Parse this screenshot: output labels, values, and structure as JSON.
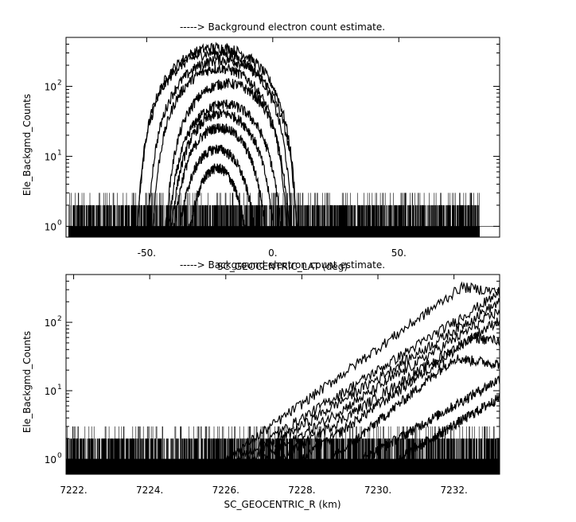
{
  "chart_data": [
    {
      "type": "line",
      "title": "-----> Background electron count estimate.",
      "xlabel": "SC_GEOCENTRIC_LAT (deg)",
      "ylabel": "Ele_Backgmd_Counts",
      "xlim": [
        -82,
        90
      ],
      "ylim": [
        0.7,
        500
      ],
      "yscale": "log",
      "grid": false,
      "x_ticks": [
        {
          "value": -50,
          "label": "-50."
        },
        {
          "value": 0,
          "label": "0."
        },
        {
          "value": 50,
          "label": "50."
        }
      ],
      "y_ticks": [
        {
          "value": 1,
          "base": "10",
          "exp": "0"
        },
        {
          "value": 10,
          "base": "10",
          "exp": "1"
        },
        {
          "value": 100,
          "base": "10",
          "exp": "2"
        }
      ],
      "noise": {
        "x_range": [
          -81,
          82
        ],
        "levels": [
          1,
          2,
          3
        ]
      },
      "series": [
        {
          "center": -22,
          "half_width": 32,
          "peak": 360
        },
        {
          "center": -23,
          "half_width": 31,
          "peak": 300
        },
        {
          "center": -20,
          "half_width": 30,
          "peak": 240
        },
        {
          "center": -21,
          "half_width": 27,
          "peak": 180
        },
        {
          "center": -18,
          "half_width": 25,
          "peak": 110
        },
        {
          "center": -19,
          "half_width": 23,
          "peak": 55
        },
        {
          "center": -20,
          "half_width": 21,
          "peak": 40
        },
        {
          "center": -21,
          "half_width": 19,
          "peak": 25
        },
        {
          "center": -22,
          "half_width": 16,
          "peak": 12
        },
        {
          "center": -22,
          "half_width": 12,
          "peak": 6
        }
      ]
    },
    {
      "type": "line",
      "title": "-----> Background electron count estimate.",
      "xlabel": "SC_GEOCENTRIC_R (km)",
      "ylabel": "Ele_Backgmd_Counts",
      "xlim": [
        7221.8,
        7233.2
      ],
      "ylim": [
        0.6,
        500
      ],
      "yscale": "log",
      "grid": false,
      "x_ticks": [
        {
          "value": 7222,
          "label": "7222."
        },
        {
          "value": 7224,
          "label": "7224."
        },
        {
          "value": 7226,
          "label": "7226."
        },
        {
          "value": 7228,
          "label": "7228."
        },
        {
          "value": 7230,
          "label": "7230."
        },
        {
          "value": 7232,
          "label": "7232."
        }
      ],
      "y_ticks": [
        {
          "value": 1,
          "base": "10",
          "exp": "0"
        },
        {
          "value": 10,
          "base": "10",
          "exp": "1"
        },
        {
          "value": 100,
          "base": "10",
          "exp": "2"
        }
      ],
      "noise": {
        "x_range": [
          7221.8,
          7233.2
        ],
        "levels": [
          1,
          2,
          3
        ]
      },
      "series": [
        {
          "x_start": 7226.0,
          "x_peak": 7232.2,
          "peak": 330
        },
        {
          "x_start": 7226.3,
          "x_peak": 7233.2,
          "peak": 270
        },
        {
          "x_start": 7226.6,
          "x_peak": 7233.2,
          "peak": 200
        },
        {
          "x_start": 7227.0,
          "x_peak": 7233.2,
          "peak": 150
        },
        {
          "x_start": 7227.4,
          "x_peak": 7233.2,
          "peak": 110
        },
        {
          "x_start": 7228.0,
          "x_peak": 7232.5,
          "peak": 60
        },
        {
          "x_start": 7228.8,
          "x_peak": 7232.0,
          "peak": 30
        },
        {
          "x_start": 7229.6,
          "x_peak": 7233.2,
          "peak": 15
        },
        {
          "x_start": 7230.5,
          "x_peak": 7233.2,
          "peak": 8
        }
      ]
    }
  ]
}
